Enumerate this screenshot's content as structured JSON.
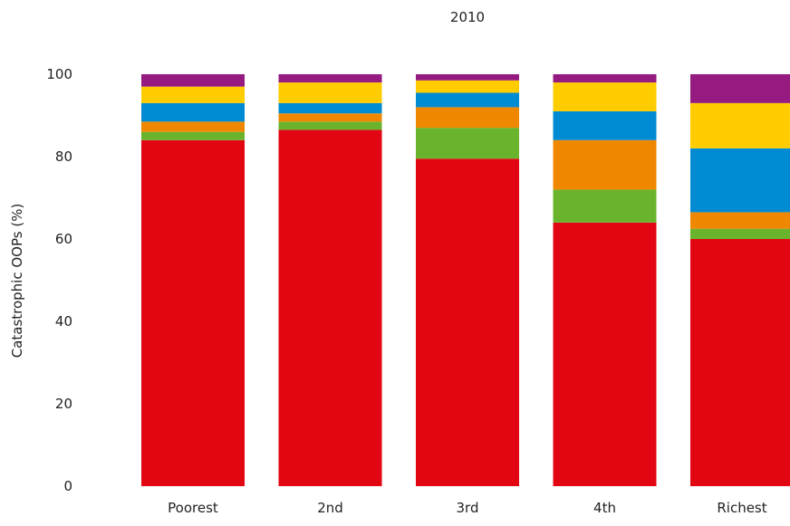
{
  "chart_data": {
    "type": "bar",
    "stacked": true,
    "title": "2010",
    "xlabel": "",
    "ylabel": "Catastrophic OOPs (%)",
    "ylim": [
      0,
      100
    ],
    "yticks": [
      0,
      20,
      40,
      60,
      80,
      100
    ],
    "grid": false,
    "legend": "none",
    "categories": [
      "Poorest",
      "2nd",
      "3rd",
      "4th",
      "Richest"
    ],
    "series": [
      {
        "color": "#e20613",
        "values": [
          84,
          86.5,
          79.5,
          64,
          60
        ]
      },
      {
        "color": "#6ab42d",
        "values": [
          2,
          2,
          7.5,
          8,
          2.5
        ]
      },
      {
        "color": "#f08700",
        "values": [
          2.5,
          2,
          5,
          12,
          4
        ]
      },
      {
        "color": "#008bd2",
        "values": [
          4.5,
          2.5,
          3.5,
          7,
          15.5
        ]
      },
      {
        "color": "#ffcc00",
        "values": [
          4,
          5,
          3,
          7,
          11
        ]
      },
      {
        "color": "#951b81",
        "values": [
          3,
          2,
          1.5,
          2,
          7
        ]
      }
    ]
  }
}
